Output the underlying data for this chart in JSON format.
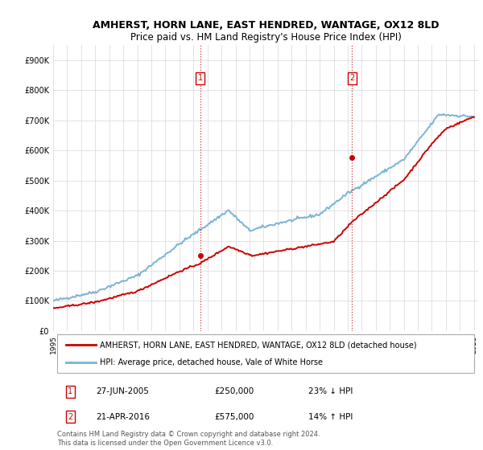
{
  "title": "AMHERST, HORN LANE, EAST HENDRED, WANTAGE, OX12 8LD",
  "subtitle": "Price paid vs. HM Land Registry's House Price Index (HPI)",
  "ylim": [
    0,
    950000
  ],
  "yticks": [
    0,
    100000,
    200000,
    300000,
    400000,
    500000,
    600000,
    700000,
    800000,
    900000
  ],
  "ytick_labels": [
    "£0",
    "£100K",
    "£200K",
    "£300K",
    "£400K",
    "£500K",
    "£600K",
    "£700K",
    "£800K",
    "£900K"
  ],
  "hpi_color": "#7ab3d4",
  "sale_color": "#cc0000",
  "sale1_year": 2005.48,
  "sale2_year": 2016.3,
  "sale1_value": 250000,
  "sale2_value": 575000,
  "sale1_label": "27-JUN-2005",
  "sale2_label": "21-APR-2016",
  "sale1_pct": "23% ↓ HPI",
  "sale2_pct": "14% ↑ HPI",
  "legend_sale_label": "AMHERST, HORN LANE, EAST HENDRED, WANTAGE, OX12 8LD (detached house)",
  "legend_hpi_label": "HPI: Average price, detached house, Vale of White Horse",
  "footnote1": "Contains HM Land Registry data © Crown copyright and database right 2024.",
  "footnote2": "This data is licensed under the Open Government Licence v3.0.",
  "background_color": "#ffffff",
  "grid_color": "#dddddd",
  "title_fontsize": 9,
  "subtitle_fontsize": 8.5,
  "tick_fontsize": 7,
  "hpi_linewidth": 1.4,
  "sale_linewidth": 1.4
}
